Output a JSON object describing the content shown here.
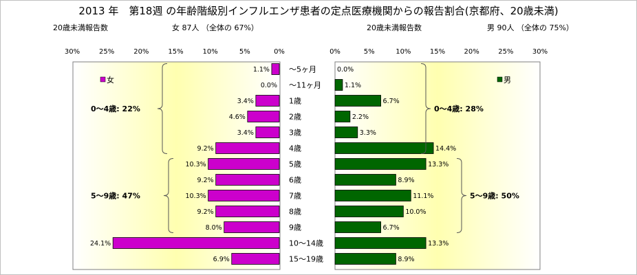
{
  "chart": {
    "title": "2013 年　第18週 の年齢階級別インフルエンザ患者の定点医療機関からの報告割合(京都府、20歳未満)",
    "left_header": {
      "label": "20歳未満報告数",
      "total": "女  87人  （全体の  67%）"
    },
    "right_header": {
      "label": "20歳未満報告数",
      "total": "男  90人  （全体の  75%）"
    },
    "left_legend": "女",
    "right_legend": "男",
    "left_groups": [
      {
        "label": "0～4歳:  22%",
        "from": 0,
        "to": 5
      },
      {
        "label": "5～9歳:  47%",
        "from": 6,
        "to": 10
      }
    ],
    "right_groups": [
      {
        "label": "0～4歳:  28%",
        "from": 0,
        "to": 5
      },
      {
        "label": "5～9歳:  50%",
        "from": 6,
        "to": 10
      }
    ]
  },
  "colors": {
    "female": "#cc00cc",
    "male": "#006600",
    "plot_bg_edge": "#ffffff",
    "plot_bg_center": "#ffffb0"
  },
  "chart_data": {
    "type": "bar",
    "orientation": "horizontal",
    "categories": [
      "～5ヶ月",
      "～11ヶ月",
      "1歳",
      "2歳",
      "3歳",
      "4歳",
      "5歳",
      "6歳",
      "7歳",
      "8歳",
      "9歳",
      "10～14歳",
      "15～19歳"
    ],
    "series": [
      {
        "name": "女",
        "values": [
          1.1,
          0.0,
          3.4,
          4.6,
          3.4,
          9.2,
          10.3,
          9.2,
          10.3,
          9.2,
          8.0,
          24.1,
          6.9
        ],
        "labels": [
          "1.1%",
          "0.0%",
          "3.4%",
          "4.6%",
          "3.4%",
          "9.2%",
          "10.3%",
          "9.2%",
          "10.3%",
          "9.2%",
          "8.0%",
          "24.1%",
          "6.9%"
        ]
      },
      {
        "name": "男",
        "values": [
          0.0,
          1.1,
          6.7,
          2.2,
          3.3,
          14.4,
          13.3,
          8.9,
          11.1,
          10.0,
          6.7,
          13.3,
          8.9
        ],
        "labels": [
          "0.0%",
          "1.1%",
          "6.7%",
          "2.2%",
          "3.3%",
          "14.4%",
          "13.3%",
          "8.9%",
          "11.1%",
          "10.0%",
          "6.7%",
          "13.3%",
          "8.9%"
        ]
      }
    ],
    "xlim": [
      0,
      30
    ],
    "left_ticks": [
      "30%",
      "25%",
      "20%",
      "15%",
      "10%",
      "5%",
      "0%"
    ],
    "right_ticks": [
      "0%",
      "5%",
      "10%",
      "15%",
      "20%",
      "25%",
      "30%"
    ],
    "grid": false,
    "legend": "top-right"
  }
}
